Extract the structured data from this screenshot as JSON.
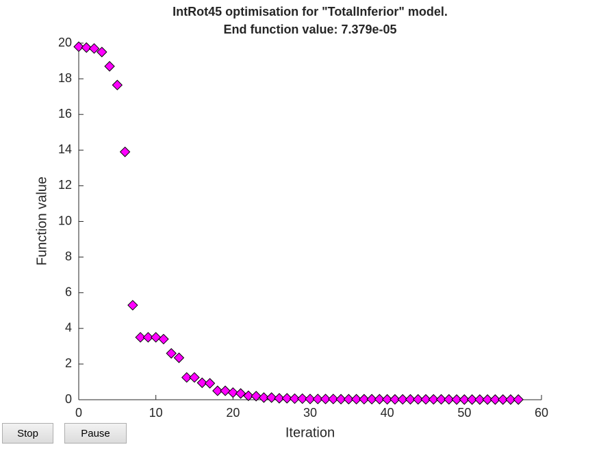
{
  "chart_data": {
    "type": "scatter",
    "title": [
      "IntRot45 optimisation for \"TotalInferior\" model.",
      "End function value: 7.379e-05"
    ],
    "xlabel": "Iteration",
    "ylabel": "Function value",
    "x": [
      0,
      1,
      2,
      3,
      4,
      5,
      6,
      7,
      8,
      9,
      10,
      11,
      12,
      13,
      14,
      15,
      16,
      17,
      18,
      19,
      20,
      21,
      22,
      23,
      24,
      25,
      26,
      27,
      28,
      29,
      30,
      31,
      32,
      33,
      34,
      35,
      36,
      37,
      38,
      39,
      40,
      41,
      42,
      43,
      44,
      45,
      46,
      47,
      48,
      49,
      50,
      51,
      52,
      53,
      54,
      55,
      56,
      57
    ],
    "values": [
      19.8,
      19.75,
      19.7,
      19.5,
      18.7,
      17.65,
      13.9,
      5.3,
      3.5,
      3.5,
      3.5,
      3.4,
      2.6,
      2.35,
      1.25,
      1.25,
      0.95,
      0.92,
      0.5,
      0.5,
      0.4,
      0.35,
      0.22,
      0.2,
      0.12,
      0.12,
      0.08,
      0.08,
      0.06,
      0.06,
      0.04,
      0.04,
      0.04,
      0.04,
      0.03,
      0.03,
      0.03,
      0.03,
      0.03,
      0.03,
      0.02,
      0.02,
      0.02,
      0.02,
      0.02,
      0.02,
      0.02,
      0.02,
      0.02,
      0.01,
      0.01,
      0.01,
      0.01,
      0.01,
      0.01,
      0.01,
      0.01,
      0.01
    ],
    "color": "#ff00ff",
    "xlim": [
      0,
      60
    ],
    "xticks": [
      0,
      10,
      20,
      30,
      40,
      50,
      60
    ],
    "ylim": [
      0,
      20
    ],
    "yticks": [
      0,
      2,
      4,
      6,
      8,
      10,
      12,
      14,
      16,
      18,
      20
    ]
  },
  "buttons": [
    "Stop",
    "Pause"
  ]
}
